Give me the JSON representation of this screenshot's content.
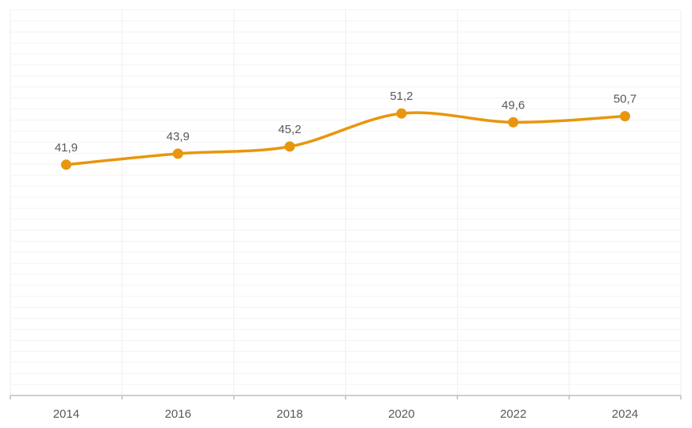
{
  "chart_data": {
    "type": "line",
    "title": "",
    "xlabel": "",
    "ylabel": "",
    "categories": [
      "2014",
      "2016",
      "2018",
      "2020",
      "2022",
      "2024"
    ],
    "values": [
      41.9,
      43.9,
      45.2,
      51.2,
      49.6,
      50.7
    ],
    "data_labels": [
      "41,9",
      "43,9",
      "45,2",
      "51,2",
      "49,6",
      "50,7"
    ],
    "decimal_separator": ",",
    "ylim": [
      0,
      70
    ],
    "y_gridline_step": 2,
    "grid": true,
    "legend_position": "none",
    "smooth": true,
    "marker": "circle",
    "series_name": ""
  },
  "colors": {
    "background": "#FFFFFF",
    "line": "#E8960D",
    "marker_fill": "#E8960D",
    "grid_horizontal": "#F3F3F3",
    "grid_vertical": "#EFEFEF",
    "axis_line": "#BFBFBF",
    "tick": "#BFBFBF",
    "data_label_text": "#595959",
    "axis_label_text": "#595959"
  }
}
